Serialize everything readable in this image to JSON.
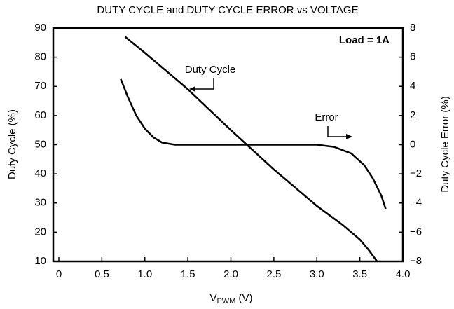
{
  "chart_data": {
    "type": "line",
    "title": "DUTY CYCLE and DUTY CYCLE ERROR vs VOLTAGE",
    "x_label": [
      "V",
      "PWM",
      " (V)"
    ],
    "y_label": "Duty Cycle (%)",
    "y2_label": "Duty Cycle Error (%)",
    "xlim": [
      0,
      4
    ],
    "xticks": [
      0,
      0.5,
      {
        "value": 1,
        "label": "1.0"
      },
      1.5,
      {
        "value": 2,
        "label": "2.0"
      },
      2.5,
      {
        "value": 3,
        "label": "3.0"
      },
      3.5,
      {
        "value": 4,
        "label": "4.0"
      }
    ],
    "ylim": [
      10,
      90
    ],
    "yticks": [
      10,
      20,
      30,
      40,
      50,
      60,
      70,
      80,
      90
    ],
    "y2lim": [
      -8,
      8
    ],
    "y2ticks": [
      {
        "value": -8,
        "label": "−8"
      },
      {
        "value": -6,
        "label": "−6"
      },
      {
        "value": -4,
        "label": "−4"
      },
      {
        "value": -2,
        "label": "−2"
      },
      0,
      2,
      4,
      6,
      8
    ],
    "grid": false,
    "series": [
      {
        "name": "Duty Cycle",
        "color": "#000000",
        "x": [
          0.77,
          1.0,
          1.5,
          2.0,
          2.5,
          3.0,
          3.3,
          3.5,
          3.6,
          3.7
        ],
        "values": [
          87,
          81.5,
          69,
          55,
          41.5,
          29,
          22.5,
          17.5,
          14,
          10
        ]
      },
      {
        "name": "Error",
        "color": "#000000",
        "axis": "y2",
        "x": [
          0.72,
          0.8,
          0.9,
          1.0,
          1.1,
          1.2,
          1.35,
          3.0,
          3.2,
          3.4,
          3.55,
          3.65,
          3.75,
          3.8
        ],
        "values": [
          4.5,
          3.3,
          2.0,
          1.1,
          0.5,
          0.15,
          0,
          0,
          -0.15,
          -0.6,
          -1.4,
          -2.3,
          -3.5,
          -4.4
        ]
      }
    ],
    "annotation": "Load = 1A"
  }
}
